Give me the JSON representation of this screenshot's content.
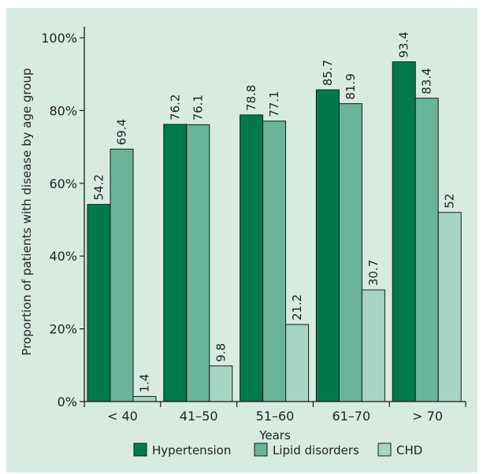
{
  "chart_data": {
    "type": "bar",
    "title": "",
    "xlabel": "Years",
    "ylabel": "Proportion of patients with disease by age group",
    "categories": [
      "< 40",
      "41–50",
      "51–60",
      "61–70",
      "> 70"
    ],
    "ylim": [
      0,
      100
    ],
    "yticks": [
      "0%",
      "20%",
      "40%",
      "60%",
      "80%",
      "100%"
    ],
    "ytick_values": [
      0,
      20,
      40,
      60,
      80,
      100
    ],
    "grid": false,
    "legend_position": "bottom",
    "series": [
      {
        "name": "Hypertension",
        "color": "#007a4d",
        "values": [
          54.2,
          76.2,
          78.8,
          85.7,
          93.4
        ],
        "labels": [
          "54.2",
          "76.2",
          "78.8",
          "85.7",
          "93.4"
        ]
      },
      {
        "name": "Lipid disorders",
        "color": "#6ab49a",
        "values": [
          69.4,
          76.1,
          77.1,
          81.9,
          83.4
        ],
        "labels": [
          "69.4",
          "76.1",
          "77.1",
          "81.9",
          "83.4"
        ]
      },
      {
        "name": "CHD",
        "color": "#a8d4c3",
        "values": [
          1.4,
          9.8,
          21.2,
          30.7,
          52
        ],
        "labels": [
          "1.4",
          "9.8",
          "21.2",
          "30.7",
          "52"
        ]
      }
    ]
  }
}
